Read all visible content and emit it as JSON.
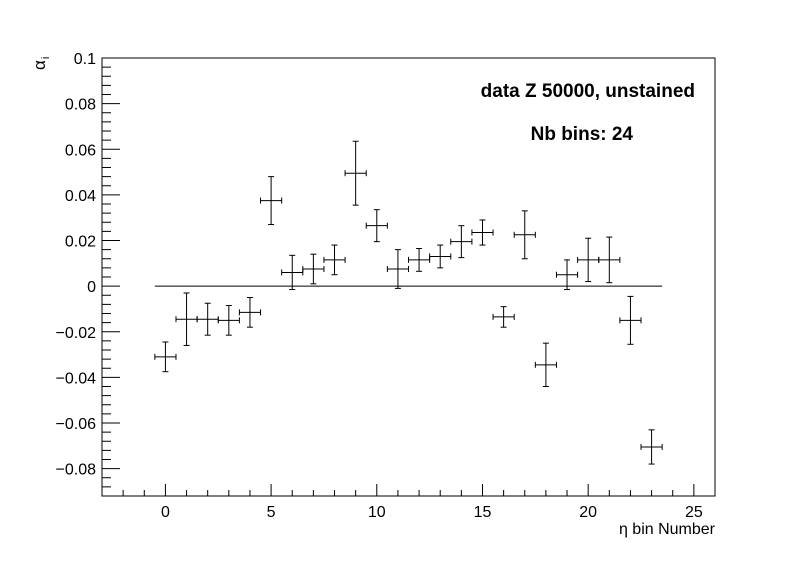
{
  "chart_data": {
    "type": "scatter",
    "annotations": {
      "line1": "data Z 50000, unstained",
      "line2": "Nb bins: 24"
    },
    "xlabel": "η bin Number",
    "ylabel": "α",
    "ylabel_sub": "i",
    "xlim": [
      -3,
      26
    ],
    "ylim": [
      -0.092,
      0.1
    ],
    "x_ticks": [
      {
        "v": 0,
        "label": "0"
      },
      {
        "v": 5,
        "label": "5"
      },
      {
        "v": 10,
        "label": "10"
      },
      {
        "v": 15,
        "label": "15"
      },
      {
        "v": 20,
        "label": "20"
      },
      {
        "v": 25,
        "label": "25"
      }
    ],
    "y_ticks": [
      {
        "v": 0.1,
        "label": "0.1"
      },
      {
        "v": 0.08,
        "label": "0.08"
      },
      {
        "v": 0.06,
        "label": "0.06"
      },
      {
        "v": 0.04,
        "label": "0.04"
      },
      {
        "v": 0.02,
        "label": "0.02"
      },
      {
        "v": 0,
        "label": "0"
      },
      {
        "v": -0.02,
        "label": "−0.02"
      },
      {
        "v": -0.04,
        "label": "−0.04"
      },
      {
        "v": -0.06,
        "label": "−0.06"
      },
      {
        "v": -0.08,
        "label": "−0.08"
      }
    ],
    "reference_line": {
      "y": 0,
      "x_from": -0.5,
      "x_to": 23.5
    },
    "x_error": 0.5,
    "points": [
      {
        "x": 0,
        "y": -0.031,
        "err": 0.0065
      },
      {
        "x": 1,
        "y": -0.0145,
        "err": 0.0115
      },
      {
        "x": 2,
        "y": -0.0145,
        "err": 0.007
      },
      {
        "x": 3,
        "y": -0.015,
        "err": 0.0065
      },
      {
        "x": 4,
        "y": -0.0115,
        "err": 0.0065
      },
      {
        "x": 5,
        "y": 0.0375,
        "err": 0.0105
      },
      {
        "x": 6,
        "y": 0.006,
        "err": 0.0075
      },
      {
        "x": 7,
        "y": 0.0075,
        "err": 0.0065
      },
      {
        "x": 8,
        "y": 0.0115,
        "err": 0.0065
      },
      {
        "x": 9,
        "y": 0.0495,
        "err": 0.014
      },
      {
        "x": 10,
        "y": 0.0265,
        "err": 0.007
      },
      {
        "x": 11,
        "y": 0.0075,
        "err": 0.0085
      },
      {
        "x": 12,
        "y": 0.0115,
        "err": 0.005
      },
      {
        "x": 13,
        "y": 0.013,
        "err": 0.005
      },
      {
        "x": 14,
        "y": 0.0195,
        "err": 0.007
      },
      {
        "x": 15,
        "y": 0.0235,
        "err": 0.0055
      },
      {
        "x": 16,
        "y": -0.0135,
        "err": 0.0045
      },
      {
        "x": 17,
        "y": 0.0225,
        "err": 0.0105
      },
      {
        "x": 18,
        "y": -0.0345,
        "err": 0.0095
      },
      {
        "x": 19,
        "y": 0.005,
        "err": 0.0065
      },
      {
        "x": 20,
        "y": 0.0115,
        "err": 0.0095
      },
      {
        "x": 21,
        "y": 0.0115,
        "err": 0.01
      },
      {
        "x": 22,
        "y": -0.015,
        "err": 0.0105
      },
      {
        "x": 23,
        "y": -0.0705,
        "err": 0.0075
      }
    ]
  }
}
